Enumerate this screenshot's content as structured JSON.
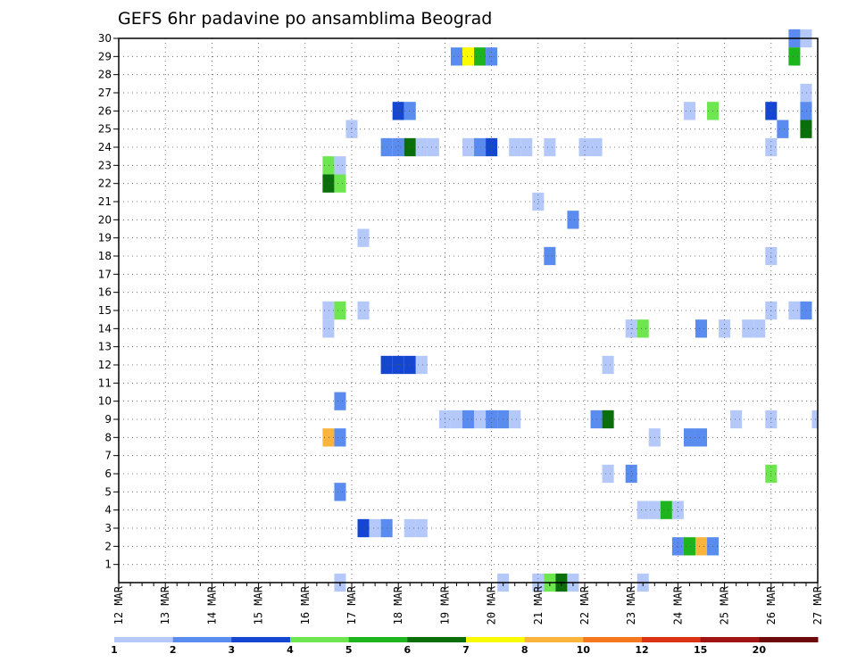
{
  "chart_data": {
    "type": "heatmap",
    "title": "GEFS 6hr padavine po ansamblima Beograd",
    "y_ticks": [
      "1",
      "2",
      "3",
      "4",
      "5",
      "6",
      "7",
      "8",
      "9",
      "10",
      "11",
      "12",
      "13",
      "14",
      "15",
      "16",
      "17",
      "18",
      "19",
      "20",
      "21",
      "22",
      "23",
      "24",
      "25",
      "26",
      "27",
      "28",
      "29",
      "30"
    ],
    "x_ticks": [
      "12 MAR",
      "13 MAR",
      "14 MAR",
      "15 MAR",
      "16 MAR",
      "17 MAR",
      "18 MAR",
      "19 MAR",
      "20 MAR",
      "21 MAR",
      "22 MAR",
      "23 MAR",
      "24 MAR",
      "25 MAR",
      "26 MAR",
      "27 MAR"
    ],
    "x_unit": "6-hour steps from 12 MAR 00Z",
    "y_unit": "ensemble member",
    "grid": true,
    "legend_position": "bottom",
    "colorbar": {
      "labels": [
        "1",
        "2",
        "3",
        "4",
        "5",
        "6",
        "7",
        "8",
        "10",
        "12",
        "15",
        "20"
      ],
      "colors": [
        "#b4c8fa",
        "#5a8cf0",
        "#1446d2",
        "#6ee650",
        "#1eb41e",
        "#0a6e0a",
        "#fafa00",
        "#fab43c",
        "#f5781e",
        "#dc3214",
        "#a01414",
        "#6e0a0a"
      ]
    },
    "cells": [
      {
        "m": 30,
        "s": 58,
        "c": 2
      },
      {
        "m": 30,
        "s": 59,
        "c": 1
      },
      {
        "m": 29,
        "s": 29,
        "c": 2
      },
      {
        "m": 29,
        "s": 30,
        "c": 7
      },
      {
        "m": 29,
        "s": 31,
        "c": 5
      },
      {
        "m": 29,
        "s": 32,
        "c": 2
      },
      {
        "m": 29,
        "s": 58,
        "c": 5
      },
      {
        "m": 27,
        "s": 59,
        "c": 1
      },
      {
        "m": 26,
        "s": 24,
        "c": 3
      },
      {
        "m": 26,
        "s": 25,
        "c": 2
      },
      {
        "m": 26,
        "s": 49,
        "c": 1
      },
      {
        "m": 26,
        "s": 51,
        "c": 4
      },
      {
        "m": 26,
        "s": 56,
        "c": 3
      },
      {
        "m": 26,
        "s": 59,
        "c": 2
      },
      {
        "m": 25,
        "s": 20,
        "c": 1
      },
      {
        "m": 25,
        "s": 57,
        "c": 2
      },
      {
        "m": 25,
        "s": 59,
        "c": 6
      },
      {
        "m": 24,
        "s": 23,
        "c": 2
      },
      {
        "m": 24,
        "s": 24,
        "c": 2
      },
      {
        "m": 24,
        "s": 25,
        "c": 6
      },
      {
        "m": 24,
        "s": 26,
        "c": 1
      },
      {
        "m": 24,
        "s": 27,
        "c": 1
      },
      {
        "m": 24,
        "s": 30,
        "c": 1
      },
      {
        "m": 24,
        "s": 31,
        "c": 2
      },
      {
        "m": 24,
        "s": 32,
        "c": 3
      },
      {
        "m": 24,
        "s": 34,
        "c": 1
      },
      {
        "m": 24,
        "s": 35,
        "c": 1
      },
      {
        "m": 24,
        "s": 37,
        "c": 1
      },
      {
        "m": 24,
        "s": 40,
        "c": 1
      },
      {
        "m": 24,
        "s": 41,
        "c": 1
      },
      {
        "m": 24,
        "s": 56,
        "c": 1
      },
      {
        "m": 23,
        "s": 18,
        "c": 4
      },
      {
        "m": 23,
        "s": 19,
        "c": 1
      },
      {
        "m": 22,
        "s": 18,
        "c": 6
      },
      {
        "m": 22,
        "s": 19,
        "c": 4
      },
      {
        "m": 21,
        "s": 36,
        "c": 1
      },
      {
        "m": 20,
        "s": 39,
        "c": 2
      },
      {
        "m": 19,
        "s": 21,
        "c": 1
      },
      {
        "m": 18,
        "s": 37,
        "c": 2
      },
      {
        "m": 18,
        "s": 56,
        "c": 1
      },
      {
        "m": 15,
        "s": 18,
        "c": 1
      },
      {
        "m": 15,
        "s": 19,
        "c": 4
      },
      {
        "m": 15,
        "s": 21,
        "c": 1
      },
      {
        "m": 15,
        "s": 56,
        "c": 1
      },
      {
        "m": 15,
        "s": 58,
        "c": 1
      },
      {
        "m": 15,
        "s": 59,
        "c": 2
      },
      {
        "m": 14,
        "s": 18,
        "c": 1
      },
      {
        "m": 14,
        "s": 44,
        "c": 1
      },
      {
        "m": 14,
        "s": 45,
        "c": 4
      },
      {
        "m": 14,
        "s": 50,
        "c": 2
      },
      {
        "m": 14,
        "s": 52,
        "c": 1
      },
      {
        "m": 14,
        "s": 54,
        "c": 1
      },
      {
        "m": 14,
        "s": 55,
        "c": 1
      },
      {
        "m": 12,
        "s": 23,
        "c": 3
      },
      {
        "m": 12,
        "s": 24,
        "c": 3
      },
      {
        "m": 12,
        "s": 25,
        "c": 3
      },
      {
        "m": 12,
        "s": 26,
        "c": 1
      },
      {
        "m": 12,
        "s": 42,
        "c": 1
      },
      {
        "m": 10,
        "s": 19,
        "c": 2
      },
      {
        "m": 9,
        "s": 28,
        "c": 1
      },
      {
        "m": 9,
        "s": 29,
        "c": 1
      },
      {
        "m": 9,
        "s": 30,
        "c": 2
      },
      {
        "m": 9,
        "s": 31,
        "c": 1
      },
      {
        "m": 9,
        "s": 32,
        "c": 2
      },
      {
        "m": 9,
        "s": 33,
        "c": 2
      },
      {
        "m": 9,
        "s": 34,
        "c": 1
      },
      {
        "m": 9,
        "s": 41,
        "c": 2
      },
      {
        "m": 9,
        "s": 42,
        "c": 6
      },
      {
        "m": 9,
        "s": 53,
        "c": 1
      },
      {
        "m": 9,
        "s": 56,
        "c": 1
      },
      {
        "m": 9,
        "s": 60,
        "c": 1
      },
      {
        "m": 8,
        "s": 18,
        "c": 8
      },
      {
        "m": 8,
        "s": 19,
        "c": 2
      },
      {
        "m": 8,
        "s": 46,
        "c": 1
      },
      {
        "m": 8,
        "s": 49,
        "c": 2
      },
      {
        "m": 8,
        "s": 50,
        "c": 2
      },
      {
        "m": 6,
        "s": 42,
        "c": 1
      },
      {
        "m": 6,
        "s": 44,
        "c": 2
      },
      {
        "m": 6,
        "s": 56,
        "c": 4
      },
      {
        "m": 5,
        "s": 19,
        "c": 2
      },
      {
        "m": 4,
        "s": 45,
        "c": 1
      },
      {
        "m": 4,
        "s": 46,
        "c": 1
      },
      {
        "m": 4,
        "s": 47,
        "c": 5
      },
      {
        "m": 4,
        "s": 48,
        "c": 1
      },
      {
        "m": 3,
        "s": 21,
        "c": 3
      },
      {
        "m": 3,
        "s": 22,
        "c": 1
      },
      {
        "m": 3,
        "s": 23,
        "c": 2
      },
      {
        "m": 3,
        "s": 25,
        "c": 1
      },
      {
        "m": 3,
        "s": 26,
        "c": 1
      },
      {
        "m": 2,
        "s": 48,
        "c": 2
      },
      {
        "m": 2,
        "s": 49,
        "c": 5
      },
      {
        "m": 2,
        "s": 50,
        "c": 8
      },
      {
        "m": 2,
        "s": 51,
        "c": 2
      },
      {
        "m": 0,
        "s": 19,
        "c": 1
      },
      {
        "m": 0,
        "s": 33,
        "c": 1
      },
      {
        "m": 0,
        "s": 36,
        "c": 1
      },
      {
        "m": 0,
        "s": 37,
        "c": 4
      },
      {
        "m": 0,
        "s": 38,
        "c": 6
      },
      {
        "m": 0,
        "s": 39,
        "c": 1
      },
      {
        "m": 0,
        "s": 45,
        "c": 1
      }
    ]
  }
}
